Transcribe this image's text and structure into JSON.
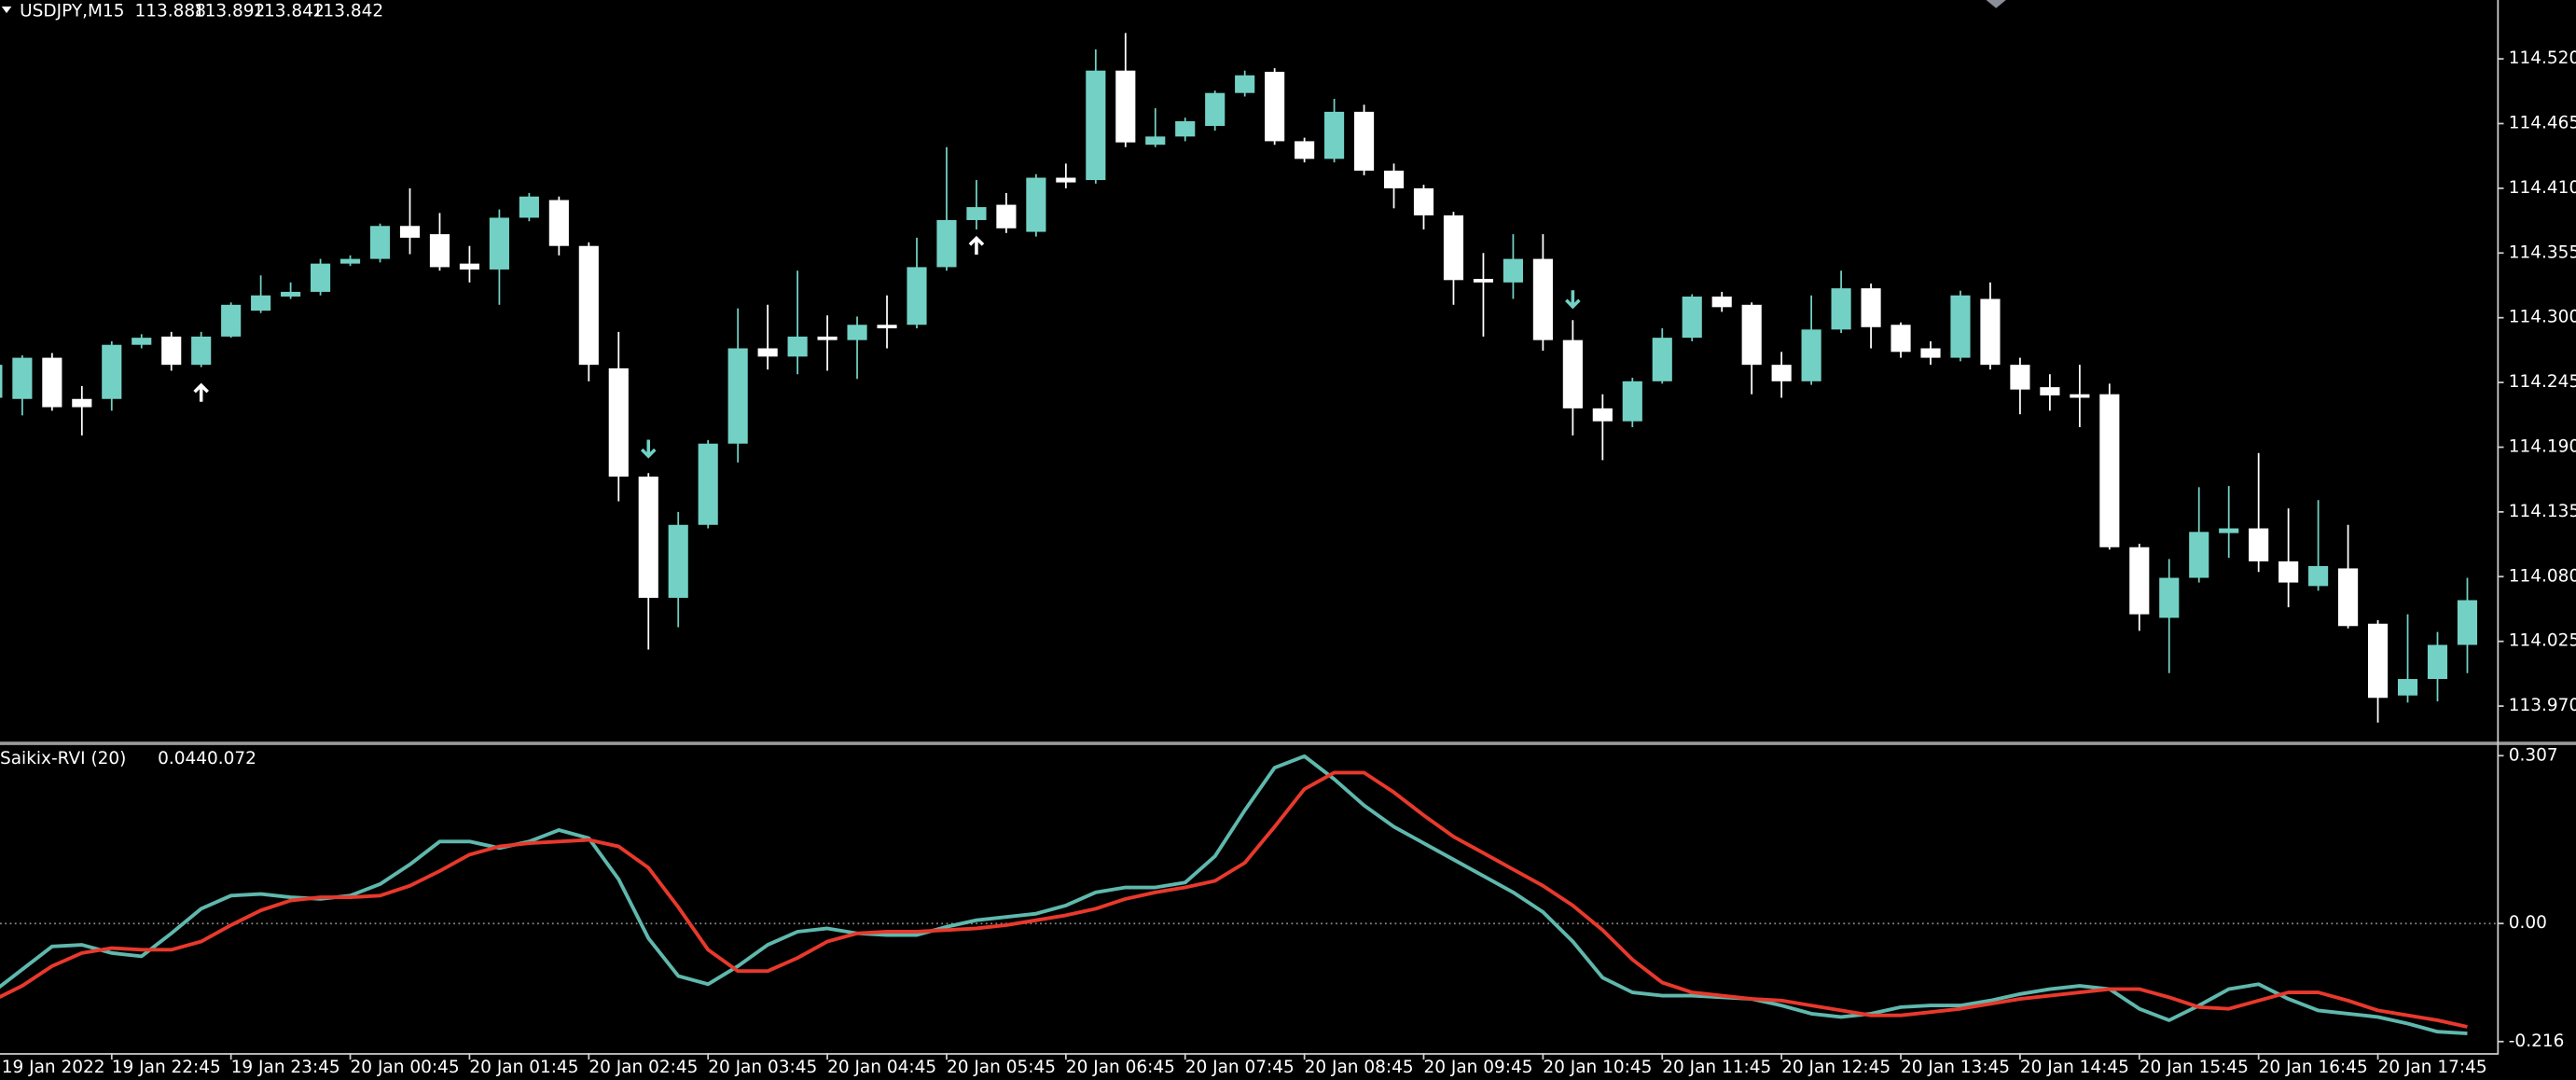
{
  "chart_data": [
    {
      "type": "candlestick",
      "title": "USDJPY,M15",
      "ohlc": [
        113.888,
        113.892,
        113.842,
        113.842
      ],
      "open": [
        114.232,
        114.231,
        114.266,
        114.231,
        114.231,
        114.277,
        114.284,
        114.26,
        114.284,
        114.306,
        114.318,
        114.322,
        114.346,
        114.35,
        114.378,
        114.371,
        114.346,
        114.341,
        114.385,
        114.4,
        114.361,
        114.257,
        114.165,
        114.062,
        114.124,
        114.193,
        114.274,
        114.267,
        114.284,
        114.281,
        114.294,
        114.294,
        114.343,
        114.383,
        114.396,
        114.373,
        114.419,
        114.417,
        114.51,
        114.447,
        114.454,
        114.463,
        114.491,
        114.509,
        114.45,
        114.435,
        114.475,
        114.425,
        114.41,
        114.387,
        114.333,
        114.33,
        114.35,
        114.281,
        114.223,
        114.212,
        114.246,
        114.283,
        114.318,
        114.311,
        114.26,
        114.246,
        114.29,
        114.325,
        114.294,
        114.274,
        114.266,
        114.316,
        114.26,
        114.241,
        114.235,
        114.235,
        114.105,
        114.045,
        114.079,
        114.117,
        114.121,
        114.093,
        114.072,
        114.087,
        114.04,
        113.979,
        113.993,
        114.022
      ],
      "high": [
        114.262,
        114.268,
        114.27,
        114.242,
        114.28,
        114.286,
        114.288,
        114.288,
        114.313,
        114.336,
        114.33,
        114.35,
        114.353,
        114.38,
        114.41,
        114.389,
        114.361,
        114.392,
        114.406,
        114.403,
        114.364,
        114.288,
        114.168,
        114.135,
        114.196,
        114.308,
        114.311,
        114.34,
        114.302,
        114.301,
        114.319,
        114.368,
        114.445,
        114.417,
        114.406,
        114.422,
        114.431,
        114.528,
        114.542,
        114.478,
        114.47,
        114.493,
        114.51,
        114.512,
        114.453,
        114.486,
        114.481,
        114.431,
        114.413,
        114.39,
        114.355,
        114.371,
        114.371,
        114.298,
        114.235,
        114.249,
        114.291,
        114.32,
        114.322,
        114.313,
        114.271,
        114.319,
        114.34,
        114.329,
        114.296,
        114.28,
        114.323,
        114.33,
        114.266,
        114.252,
        114.26,
        114.244,
        114.108,
        114.095,
        114.156,
        114.157,
        114.185,
        114.138,
        114.145,
        114.124,
        114.043,
        114.048,
        114.033,
        114.079
      ],
      "low": [
        114.23,
        114.217,
        114.221,
        114.2,
        114.221,
        114.274,
        114.255,
        114.258,
        114.283,
        114.304,
        114.316,
        114.319,
        114.344,
        114.347,
        114.354,
        114.34,
        114.33,
        114.311,
        114.382,
        114.353,
        114.246,
        114.144,
        114.018,
        114.037,
        114.121,
        114.177,
        114.256,
        114.252,
        114.255,
        114.248,
        114.274,
        114.291,
        114.34,
        114.375,
        114.372,
        114.369,
        114.41,
        114.414,
        114.445,
        114.445,
        114.45,
        114.459,
        114.488,
        114.447,
        114.432,
        114.432,
        114.421,
        114.393,
        114.375,
        114.311,
        114.284,
        114.316,
        114.272,
        114.2,
        114.179,
        114.207,
        114.244,
        114.28,
        114.305,
        114.235,
        114.232,
        114.243,
        114.287,
        114.274,
        114.266,
        114.26,
        114.263,
        114.256,
        114.218,
        114.221,
        114.207,
        114.103,
        114.034,
        113.998,
        114.075,
        114.096,
        114.084,
        114.054,
        114.068,
        114.036,
        113.956,
        113.973,
        113.974,
        113.998
      ],
      "close": [
        114.26,
        114.266,
        114.224,
        114.224,
        114.277,
        114.283,
        114.26,
        114.284,
        114.311,
        114.319,
        114.322,
        114.346,
        114.35,
        114.378,
        114.368,
        114.343,
        114.341,
        114.385,
        114.403,
        114.361,
        114.26,
        114.165,
        114.062,
        114.124,
        114.193,
        114.274,
        114.267,
        114.284,
        114.281,
        114.294,
        114.291,
        114.343,
        114.383,
        114.394,
        114.376,
        114.419,
        114.415,
        114.51,
        114.449,
        114.454,
        114.467,
        114.491,
        114.506,
        114.45,
        114.435,
        114.475,
        114.425,
        114.41,
        114.387,
        114.332,
        114.33,
        114.35,
        114.281,
        114.223,
        114.212,
        114.246,
        114.283,
        114.318,
        114.309,
        114.26,
        114.246,
        114.29,
        114.325,
        114.292,
        114.271,
        114.266,
        114.319,
        114.26,
        114.239,
        114.234,
        114.232,
        114.105,
        114.048,
        114.079,
        114.118,
        114.121,
        114.093,
        114.075,
        114.089,
        114.038,
        113.977,
        113.993,
        114.022,
        114.06
      ],
      "up_color": "#72d1c4",
      "down_color": "#ffffff",
      "buy_signals": [
        null,
        null,
        null,
        null,
        null,
        null,
        null,
        114.244,
        null,
        null,
        null,
        null,
        null,
        null,
        null,
        null,
        null,
        null,
        null,
        null,
        null,
        null,
        null,
        null,
        null,
        null,
        null,
        null,
        null,
        null,
        null,
        null,
        null,
        114.369,
        null,
        null,
        null,
        null,
        null,
        null,
        null,
        null,
        null,
        null,
        null,
        null,
        null,
        null,
        null,
        null,
        null,
        null,
        null,
        null,
        null,
        null,
        null,
        null,
        null,
        null,
        null,
        null,
        null,
        null,
        null,
        null,
        null,
        null,
        null,
        null,
        null,
        null,
        null,
        null,
        null,
        null,
        null,
        null,
        null,
        null,
        null,
        null,
        null,
        null
      ],
      "buy_color": "#ffffff",
      "sell_signals": [
        null,
        null,
        null,
        null,
        null,
        null,
        null,
        null,
        null,
        null,
        null,
        null,
        null,
        null,
        null,
        null,
        null,
        null,
        null,
        null,
        null,
        null,
        114.181,
        null,
        null,
        null,
        null,
        null,
        null,
        null,
        null,
        null,
        null,
        null,
        null,
        null,
        null,
        null,
        null,
        null,
        null,
        null,
        null,
        null,
        null,
        null,
        null,
        null,
        null,
        null,
        null,
        null,
        null,
        114.308,
        null,
        null,
        null,
        null,
        null,
        null,
        null,
        null,
        null,
        null,
        null,
        null,
        null,
        null,
        null,
        null,
        null,
        null,
        null,
        null,
        null,
        null,
        null,
        null,
        null,
        null,
        null,
        null,
        null,
        null
      ],
      "sell_color": "#72d1c4",
      "ylim": [
        113.939,
        114.57
      ],
      "yticks": [
        {
          "value": 114.52,
          "label": "114.520"
        },
        114.465,
        {
          "value": 114.41,
          "label": "114.410"
        },
        114.355,
        {
          "value": 114.3,
          "label": "114.300"
        },
        114.245,
        {
          "value": 114.19,
          "label": "114.190"
        },
        114.135,
        {
          "value": 114.08,
          "label": "114.080"
        },
        114.025,
        {
          "value": 113.97,
          "label": "113.970"
        }
      ]
    },
    {
      "type": "line",
      "title": "Saikix-RVI (20)",
      "current": [
        0.044,
        0.072
      ],
      "categories": [
        "19 Jan 2022",
        null,
        null,
        null,
        "19 Jan 22:45",
        null,
        null,
        null,
        "19 Jan 23:45",
        null,
        null,
        null,
        "20 Jan 00:45",
        null,
        null,
        null,
        "20 Jan 01:45",
        null,
        null,
        null,
        "20 Jan 02:45",
        null,
        null,
        null,
        "20 Jan 03:45",
        null,
        null,
        null,
        "20 Jan 04:45",
        null,
        null,
        null,
        "20 Jan 05:45",
        null,
        null,
        null,
        "20 Jan 06:45",
        null,
        null,
        null,
        "20 Jan 07:45",
        null,
        null,
        null,
        "20 Jan 08:45",
        null,
        null,
        null,
        "20 Jan 09:45",
        null,
        null,
        null,
        "20 Jan 10:45",
        null,
        null,
        null,
        "20 Jan 11:45",
        null,
        null,
        null,
        "20 Jan 12:45",
        null,
        null,
        null,
        "20 Jan 13:45",
        null,
        null,
        null,
        "20 Jan 14:45",
        null,
        null,
        null,
        "20 Jan 15:45",
        null,
        null,
        null,
        "20 Jan 16:45",
        null,
        null,
        null,
        "20 Jan 17:45",
        null,
        null,
        null
      ],
      "series": [
        {
          "color": "#5fb8ad",
          "values": [
            -0.126,
            -0.084,
            -0.042,
            -0.039,
            -0.054,
            -0.06,
            -0.018,
            0.027,
            0.051,
            0.054,
            0.048,
            0.045,
            0.051,
            0.072,
            0.108,
            0.15,
            0.15,
            0.138,
            0.15,
            0.171,
            0.156,
            0.081,
            -0.027,
            -0.096,
            -0.111,
            -0.078,
            -0.039,
            -0.015,
            -0.009,
            -0.018,
            -0.021,
            -0.021,
            -0.006,
            0.006,
            0.012,
            0.018,
            0.033,
            0.057,
            0.066,
            0.066,
            0.075,
            0.123,
            0.207,
            0.285,
            0.306,
            0.264,
            0.216,
            0.177,
            0.147,
            0.117,
            0.087,
            0.057,
            0.021,
            -0.033,
            -0.099,
            -0.126,
            -0.132,
            -0.132,
            -0.135,
            -0.138,
            -0.15,
            -0.165,
            -0.171,
            -0.165,
            -0.153,
            -0.15,
            -0.15,
            -0.141,
            -0.129,
            -0.12,
            -0.114,
            -0.12,
            -0.156,
            -0.177,
            -0.15,
            -0.12,
            -0.111,
            -0.138,
            -0.159,
            -0.165,
            -0.171,
            -0.183,
            -0.198,
            -0.201
          ]
        },
        {
          "color": "#e8392c",
          "values": [
            -0.141,
            -0.114,
            -0.078,
            -0.054,
            -0.045,
            -0.048,
            -0.048,
            -0.033,
            -0.003,
            0.024,
            0.042,
            0.048,
            0.048,
            0.051,
            0.069,
            0.096,
            0.126,
            0.141,
            0.147,
            0.15,
            0.153,
            0.141,
            0.102,
            0.03,
            -0.048,
            -0.087,
            -0.087,
            -0.063,
            -0.033,
            -0.018,
            -0.015,
            -0.015,
            -0.012,
            -0.009,
            -0.003,
            0.006,
            0.015,
            0.027,
            0.045,
            0.057,
            0.066,
            0.078,
            0.111,
            0.177,
            0.246,
            0.276,
            0.276,
            0.24,
            0.198,
            0.159,
            0.129,
            0.099,
            0.069,
            0.033,
            -0.012,
            -0.066,
            -0.108,
            -0.126,
            -0.132,
            -0.138,
            -0.141,
            -0.15,
            -0.159,
            -0.168,
            -0.168,
            -0.162,
            -0.156,
            -0.147,
            -0.138,
            -0.132,
            -0.126,
            -0.12,
            -0.12,
            -0.135,
            -0.153,
            -0.156,
            -0.141,
            -0.126,
            -0.126,
            -0.141,
            -0.159,
            -0.168,
            -0.177,
            -0.189
          ]
        }
      ],
      "ylim": [
        -0.237,
        0.322
      ],
      "yticks": [
        0.307,
        {
          "value": 0,
          "label": "0.00"
        },
        -0.216
      ]
    }
  ]
}
